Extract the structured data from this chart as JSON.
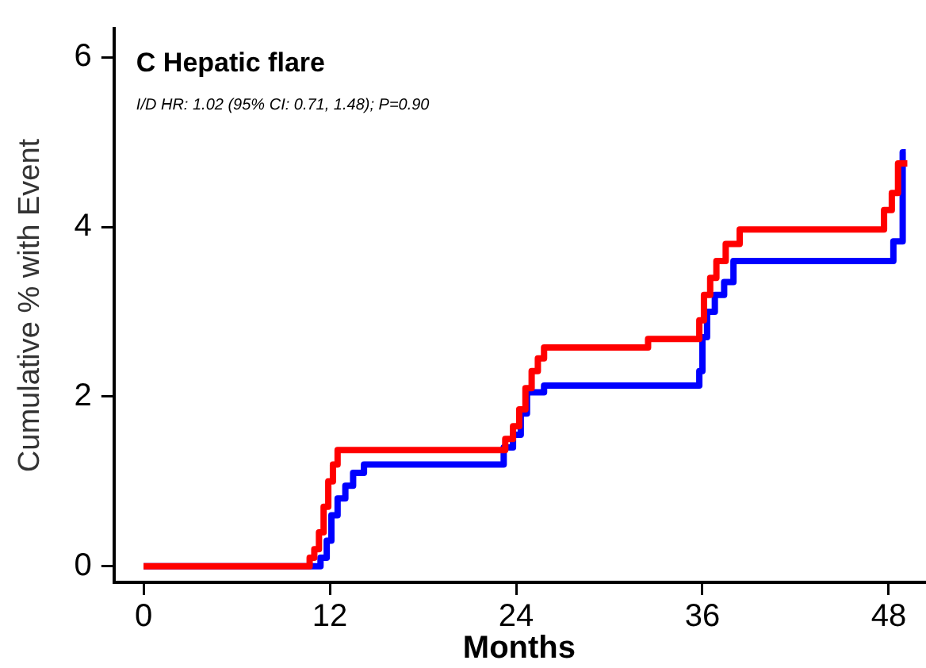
{
  "chart_data": {
    "type": "step",
    "title": "C Hepatic flare",
    "subtitle": "I/D HR: 1.02 (95% CI: 0.71, 1.48); P=0.90",
    "xlabel": "Months",
    "ylabel": "Cumulative % with Event",
    "xlim": [
      -1.9,
      50.3
    ],
    "xticks": [
      0,
      12,
      24,
      36,
      48
    ],
    "ylim": [
      -0.19,
      6.34
    ],
    "yticks": [
      0,
      2,
      4,
      6
    ],
    "grid": false,
    "legend": false,
    "line_style": "solid",
    "marker": "none",
    "series": [
      {
        "color": "#ff0000",
        "x": [
          0,
          10.5,
          10.7,
          11,
          11.3,
          11.6,
          11.9,
          12.2,
          12.5,
          22.8,
          23.3,
          23.8,
          24.2,
          24.6,
          25,
          25.4,
          25.8,
          32.5,
          35.8,
          36.1,
          36.5,
          36.9,
          37.5,
          38.4,
          47.4,
          47.7,
          48.2,
          48.6,
          49.2
        ],
        "values": [
          0,
          0,
          0.1,
          0.2,
          0.4,
          0.7,
          1.0,
          1.2,
          1.37,
          1.37,
          1.5,
          1.65,
          1.85,
          2.1,
          2.3,
          2.45,
          2.58,
          2.68,
          2.9,
          3.2,
          3.4,
          3.6,
          3.8,
          3.97,
          3.97,
          4.2,
          4.4,
          4.75,
          4.75
        ]
      },
      {
        "color": "#0000ff",
        "x": [
          0,
          11,
          11.4,
          11.8,
          12.1,
          12.5,
          13,
          13.5,
          14.2,
          22.8,
          23.2,
          23.8,
          24.3,
          24.7,
          25.8,
          35.5,
          35.8,
          36,
          36.3,
          36.8,
          37.4,
          38,
          47.7,
          48.3,
          48.9,
          49.1
        ],
        "values": [
          0,
          0,
          0.1,
          0.3,
          0.6,
          0.8,
          0.95,
          1.1,
          1.2,
          1.2,
          1.4,
          1.55,
          1.8,
          2.05,
          2.13,
          2.13,
          2.3,
          2.7,
          3.0,
          3.2,
          3.35,
          3.6,
          3.6,
          3.83,
          4.88,
          4.88
        ]
      }
    ]
  }
}
